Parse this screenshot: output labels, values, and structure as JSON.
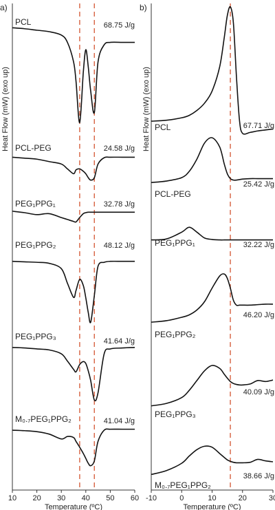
{
  "chart_data": [
    {
      "type": "line",
      "panel": "a)",
      "xlabel": "Temperature (ºC)",
      "ylabel": "Heat Flow (mW) (exo up)",
      "xlim": [
        10,
        60
      ],
      "xticks": [
        10,
        20,
        30,
        40,
        50,
        60
      ],
      "ylim": [
        0,
        100
      ],
      "vlines": [
        37.5,
        43.5
      ],
      "vline_color": "#d9694a",
      "x": [
        10,
        15,
        20,
        25,
        30,
        32.5,
        35,
        36,
        37.5,
        39,
        40,
        41,
        42,
        43.5,
        45,
        47.5,
        50,
        55,
        60
      ],
      "series": [
        {
          "name": "PCL",
          "color": "#111111",
          "enthalpy": {
            "value": 68.75,
            "label": "68.75 J/g"
          },
          "values": [
            95,
            94.8,
            94.5,
            94.2,
            93.5,
            92,
            88,
            84,
            75.5,
            86,
            90.5,
            87,
            82,
            77.6,
            88,
            91.5,
            92,
            92,
            92
          ]
        },
        {
          "name": "PCL-PEG",
          "color": "#111111",
          "enthalpy": {
            "value": 24.58,
            "label": "24.58 J/g"
          },
          "values": [
            68.4,
            68.2,
            68.0,
            67.5,
            67,
            66,
            65,
            65.8,
            66,
            65.5,
            65,
            64.2,
            63.7,
            64.2,
            67,
            68.3,
            68.4,
            68.4,
            68.4
          ]
        },
        {
          "name": "PEG₁PPG₁",
          "color": "#111111",
          "enthalpy": {
            "value": 32.78,
            "label": "32.78 J/g"
          },
          "values": [
            57.3,
            57,
            56.6,
            56.8,
            56,
            55.6,
            55.2,
            55.1,
            56,
            56.8,
            57,
            57.1,
            57.1,
            57.1,
            57.1,
            57.1,
            57.1,
            57.1,
            57.1
          ]
        },
        {
          "name": "PEG₁PPG₂",
          "color": "#111111",
          "enthalpy": {
            "value": 48.12,
            "label": "48.12 J/g"
          },
          "values": [
            47,
            46.9,
            46.8,
            46.6,
            45.5,
            42.5,
            39.6,
            41,
            43.3,
            42,
            39.5,
            36.5,
            34.5,
            40,
            46,
            46.8,
            47,
            47,
            47
          ]
        },
        {
          "name": "PEG₁PPG₃",
          "color": "#111111",
          "enthalpy": {
            "value": 41.64,
            "label": "41.64 J/g"
          },
          "values": [
            29.3,
            29.2,
            29,
            28.8,
            28,
            26.5,
            24.8,
            24.3,
            25.8,
            26.4,
            26,
            24.5,
            22.5,
            18.5,
            20,
            28,
            29,
            29.2,
            29.3
          ]
        },
        {
          "name": "M₀.₇PEG₁PPG₂",
          "color": "#111111",
          "enthalpy": {
            "value": 41.04,
            "label": "41.04 J/g"
          },
          "values": [
            12.3,
            12.2,
            12,
            11.5,
            10.5,
            11,
            10.8,
            10,
            8.8,
            7.5,
            6.5,
            5.5,
            5,
            6,
            10,
            12.3,
            12.5,
            12.5,
            12.5
          ]
        }
      ]
    },
    {
      "type": "line",
      "panel": "b)",
      "xlabel": "Temperature (ºC)",
      "ylabel": "Heat Flow (mW) (exo up)",
      "xlim": [
        -10,
        30
      ],
      "xticks": [
        -10,
        0,
        10,
        20,
        30
      ],
      "ylim": [
        0,
        100
      ],
      "vlines": [
        16
      ],
      "vline_color": "#d9694a",
      "x": [
        -10,
        -5,
        0,
        2.5,
        5,
        7.5,
        10,
        12.5,
        14,
        15,
        16,
        17,
        18,
        19,
        20,
        22.5,
        25,
        27.5,
        30
      ],
      "series": [
        {
          "name": "PCL",
          "color": "#111111",
          "enthalpy": {
            "value": 67.71,
            "label": "67.71 J/g"
          },
          "values": [
            75.8,
            76,
            76.5,
            77,
            78,
            79.5,
            82,
            87,
            93,
            97.5,
            99.3,
            96,
            85,
            76,
            73.3,
            73.5,
            73.8,
            74,
            74.2
          ]
        },
        {
          "name": "PCL-PEG",
          "color": "#111111",
          "enthalpy": {
            "value": 25.42,
            "label": "25.42 J/g"
          },
          "values": [
            63.2,
            63.5,
            64.2,
            65.5,
            68,
            71.3,
            72.4,
            70.5,
            67,
            65,
            64,
            63.7,
            63.7,
            63.8,
            63.9,
            64,
            64,
            64,
            64
          ]
        },
        {
          "name": "PEG₁PPG₁",
          "color": "#111111",
          "enthalpy": {
            "value": 32.22,
            "label": "32.22 J/g"
          },
          "values": [
            51.4,
            51.6,
            53,
            54,
            53,
            51.8,
            51.5,
            51.4,
            51.4,
            51.4,
            51.4,
            51.4,
            51.4,
            51.4,
            51.4,
            51.4,
            51.4,
            51.4,
            51.4
          ]
        },
        {
          "name": "PEG₁PPG₂",
          "color": "#111111",
          "enthalpy": {
            "value": 46.2,
            "label": "46.20 J/g"
          },
          "values": [
            34.5,
            34.8,
            35.5,
            36,
            37,
            38.7,
            41.5,
            44,
            44.4,
            43.5,
            41.5,
            39,
            38,
            38,
            38,
            38,
            38.1,
            38.2,
            38.2
          ]
        },
        {
          "name": "PEG₁PPG₃",
          "color": "#111111",
          "enthalpy": {
            "value": 40.09,
            "label": "40.09 J/g"
          },
          "values": [
            17.3,
            17.8,
            19,
            20.5,
            22.5,
            24.5,
            25.6,
            25,
            23.8,
            23,
            22.3,
            21.9,
            21.7,
            21.6,
            21.6,
            21.8,
            22.5,
            22.3,
            22.6
          ]
        },
        {
          "name": "M₀.₇PEG₁PPG₂",
          "color": "#111111",
          "enthalpy": {
            "value": 38.66,
            "label": "38.66 J/g"
          },
          "values": [
            3.2,
            4,
            5.5,
            7,
            8.3,
            9,
            8.8,
            7.5,
            6.7,
            6.2,
            5.9,
            5.7,
            5.6,
            5.6,
            5.6,
            5.7,
            6.3,
            6,
            5.8
          ]
        }
      ]
    }
  ]
}
